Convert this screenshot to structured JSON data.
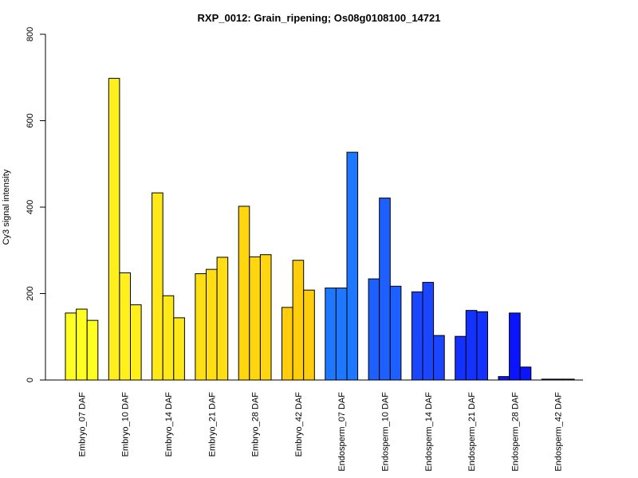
{
  "chart_data": {
    "type": "bar",
    "title": "RXP_0012: Grain_ripening; Os08g0108100_14721",
    "xlabel": "",
    "ylabel": "Cy3 signal intensity",
    "ylim": [
      0,
      800
    ],
    "yticks": [
      0,
      200,
      400,
      600,
      800
    ],
    "grid": false,
    "legend": "none",
    "groups": [
      {
        "label": "Embryo_07 DAF",
        "color": "#FFFF22",
        "values": [
          155,
          164,
          138
        ]
      },
      {
        "label": "Embryo_10 DAF",
        "color": "#FFF01D",
        "values": [
          698,
          248,
          174
        ]
      },
      {
        "label": "Embryo_14 DAF",
        "color": "#FFE818",
        "values": [
          433,
          195,
          144
        ]
      },
      {
        "label": "Embryo_21 DAF",
        "color": "#FFDF13",
        "values": [
          246,
          256,
          284
        ]
      },
      {
        "label": "Embryo_28 DAF",
        "color": "#FFD60F",
        "values": [
          402,
          285,
          290
        ]
      },
      {
        "label": "Embryo_42 DAF",
        "color": "#FFCD0C",
        "values": [
          168,
          277,
          208
        ]
      },
      {
        "label": "Endosperm_07 DAF",
        "color": "#1E78FF",
        "values": [
          213,
          213,
          527
        ]
      },
      {
        "label": "Endosperm_10 DAF",
        "color": "#1E5FFF",
        "values": [
          234,
          421,
          217
        ]
      },
      {
        "label": "Endosperm_14 DAF",
        "color": "#1A46FF",
        "values": [
          204,
          226,
          103
        ]
      },
      {
        "label": "Endosperm_21 DAF",
        "color": "#1432FF",
        "values": [
          101,
          161,
          158
        ]
      },
      {
        "label": "Endosperm_28 DAF",
        "color": "#0A14FF",
        "values": [
          8,
          155,
          30
        ]
      },
      {
        "label": "Endosperm_42 DAF",
        "color": "#0000FF",
        "values": [
          2,
          2,
          2
        ]
      }
    ]
  }
}
